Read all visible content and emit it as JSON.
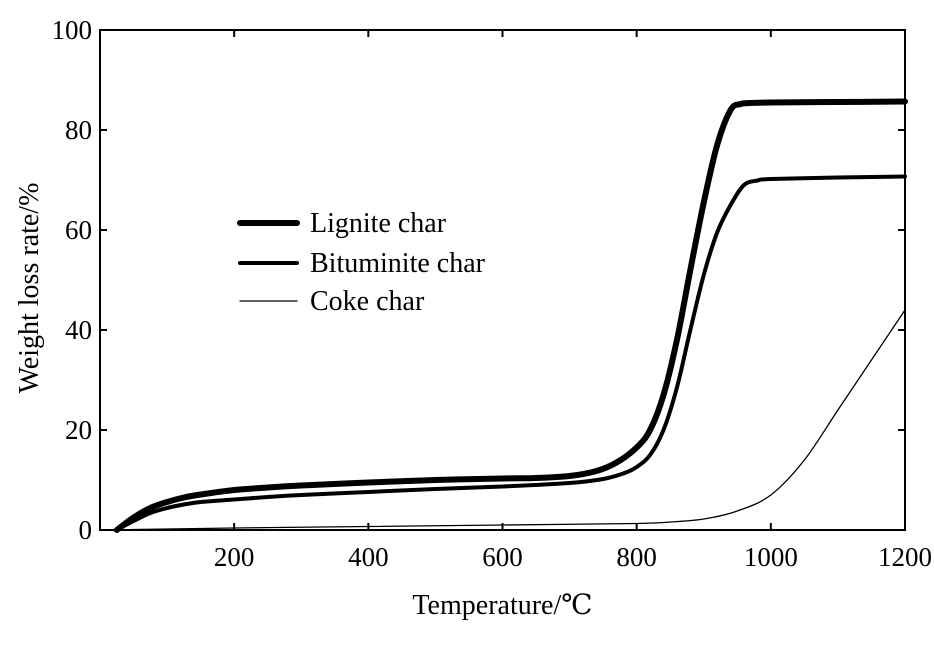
{
  "chart_data": {
    "type": "line",
    "title": "",
    "xlabel": "Temperature/℃",
    "ylabel": "Weight loss rate/%",
    "xlim": [
      0,
      1200
    ],
    "ylim": [
      0,
      100
    ],
    "x_ticks": [
      200,
      400,
      600,
      800,
      1000,
      1200
    ],
    "y_ticks": [
      0,
      20,
      40,
      60,
      80,
      100
    ],
    "grid": false,
    "legend_position": "left-center",
    "series": [
      {
        "name": "Lignite char",
        "stroke_weight": "thick",
        "x": [
          25,
          50,
          75,
          100,
          125,
          150,
          200,
          250,
          300,
          400,
          500,
          600,
          650,
          700,
          740,
          770,
          800,
          820,
          840,
          860,
          880,
          900,
          920,
          940,
          955,
          970,
          1000,
          1100,
          1200
        ],
        "y": [
          0,
          2.5,
          4.4,
          5.6,
          6.5,
          7.1,
          8.0,
          8.5,
          8.9,
          9.5,
          10.0,
          10.3,
          10.4,
          10.8,
          11.8,
          13.5,
          16.5,
          20.0,
          27.0,
          38.0,
          52.0,
          65.5,
          77.0,
          84.0,
          85.2,
          85.4,
          85.5,
          85.6,
          85.7
        ]
      },
      {
        "name": "Bituminite char",
        "stroke_weight": "medium",
        "x": [
          25,
          50,
          75,
          100,
          125,
          150,
          200,
          250,
          300,
          400,
          500,
          600,
          700,
          750,
          780,
          800,
          820,
          840,
          860,
          880,
          900,
          920,
          940,
          960,
          980,
          1000,
          1100,
          1200
        ],
        "y": [
          0,
          1.8,
          3.4,
          4.4,
          5.1,
          5.6,
          6.1,
          6.6,
          7.0,
          7.6,
          8.2,
          8.7,
          9.4,
          10.2,
          11.3,
          12.6,
          15.0,
          20.0,
          28.5,
          40.0,
          51.0,
          59.5,
          65.0,
          69.0,
          69.9,
          70.2,
          70.5,
          70.7
        ]
      },
      {
        "name": "Coke char",
        "stroke_weight": "thin",
        "x": [
          25,
          50,
          100,
          200,
          400,
          600,
          800,
          850,
          900,
          950,
          1000,
          1050,
          1100,
          1150,
          1200
        ],
        "y": [
          0,
          0.1,
          0.2,
          0.4,
          0.7,
          1.0,
          1.3,
          1.6,
          2.2,
          3.8,
          7.0,
          14.0,
          24.0,
          34.0,
          44.0
        ]
      }
    ]
  }
}
